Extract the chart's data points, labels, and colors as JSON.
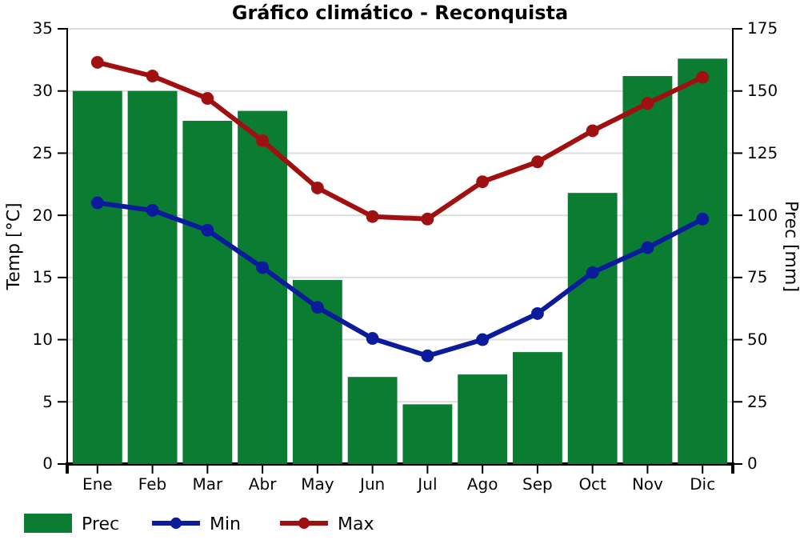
{
  "chart_data": {
    "type": "line",
    "title": "Gráfico climático - Reconquista",
    "ylabel": "Temp [°C]",
    "y2label": "Prec [mm]",
    "categories": [
      "Ene",
      "Feb",
      "Mar",
      "Abr",
      "May",
      "Jun",
      "Jul",
      "Ago",
      "Sep",
      "Oct",
      "Nov",
      "Dic"
    ],
    "series": [
      {
        "name": "Prec",
        "type": "bar",
        "axis": "y2",
        "color": "#0a7d32",
        "values": [
          150,
          150,
          138,
          142,
          74,
          35,
          24,
          36,
          45,
          109,
          156,
          163
        ]
      },
      {
        "name": "Min",
        "color": "#0a1c9c",
        "values": [
          21.0,
          20.4,
          18.8,
          15.8,
          12.6,
          10.1,
          8.7,
          10.0,
          12.1,
          15.4,
          17.4,
          19.7
        ]
      },
      {
        "name": "Max",
        "color": "#a01010",
        "values": [
          32.3,
          31.2,
          29.4,
          26.0,
          22.2,
          19.9,
          19.7,
          22.7,
          24.3,
          26.8,
          29.0,
          31.1
        ]
      }
    ],
    "ylim": [
      0,
      35
    ],
    "yticks": [
      0,
      5,
      10,
      15,
      20,
      25,
      30,
      35
    ],
    "y2lim": [
      0,
      175
    ],
    "y2ticks": [
      0,
      25,
      50,
      75,
      100,
      125,
      150,
      175
    ],
    "grid": "y",
    "legend": "bottom",
    "marker": "circle",
    "line_style": "solid"
  }
}
